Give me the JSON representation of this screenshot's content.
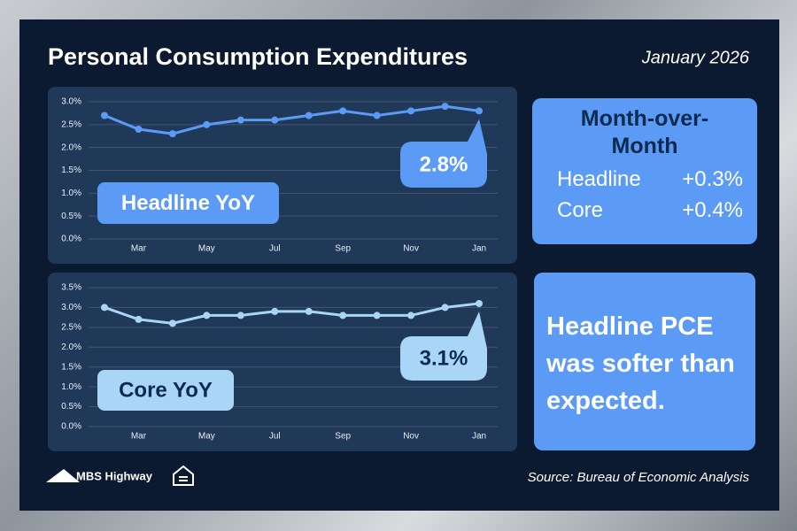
{
  "header": {
    "title": "Personal Consumption Expenditures",
    "date": "January 2026"
  },
  "chart_data": [
    {
      "type": "line",
      "title": "Headline YoY",
      "categories": [
        null,
        "Mar",
        null,
        "May",
        null,
        "Jul",
        null,
        "Sep",
        null,
        "Nov",
        null,
        "Jan"
      ],
      "values": [
        2.7,
        2.4,
        2.3,
        2.5,
        2.6,
        2.6,
        2.7,
        2.8,
        2.7,
        2.8,
        2.9,
        2.8
      ],
      "value_labels": [
        null,
        null,
        null,
        null,
        null,
        null,
        null,
        null,
        null,
        null,
        null,
        "2.8%"
      ],
      "color": "#5b9bf5",
      "ylim": [
        0,
        3
      ],
      "yticks": [
        {
          "value": 0,
          "label": "0.0%"
        },
        {
          "value": 0.5,
          "label": "0.5%"
        },
        {
          "value": 1,
          "label": "1.0%"
        },
        {
          "value": 1.5,
          "label": "1.5%"
        },
        {
          "value": 2,
          "label": "2.0%"
        },
        {
          "value": 2.5,
          "label": "2.5%"
        },
        {
          "value": 3,
          "label": "3.0%"
        }
      ],
      "grid": true
    },
    {
      "type": "line",
      "title": "Core YoY",
      "categories": [
        null,
        "Mar",
        null,
        "May",
        null,
        "Jul",
        null,
        "Sep",
        null,
        "Nov",
        null,
        "Jan"
      ],
      "values": [
        3.0,
        2.7,
        2.6,
        2.8,
        2.8,
        2.9,
        2.9,
        2.8,
        2.8,
        2.8,
        3.0,
        3.1
      ],
      "value_labels": [
        null,
        null,
        null,
        null,
        null,
        null,
        null,
        null,
        null,
        null,
        null,
        "3.1%"
      ],
      "color": "#a9d6f7",
      "ylim": [
        0,
        3.5
      ],
      "yticks": [
        {
          "value": 0,
          "label": "0.0%"
        },
        {
          "value": 0.5,
          "label": "0.5%"
        },
        {
          "value": 1,
          "label": "1.0%"
        },
        {
          "value": 1.5,
          "label": "1.5%"
        },
        {
          "value": 2,
          "label": "2.0%"
        },
        {
          "value": 2.5,
          "label": "2.5%"
        },
        {
          "value": 3,
          "label": "3.0%"
        },
        {
          "value": 3.5,
          "label": "3.5%"
        }
      ],
      "grid": true
    }
  ],
  "mom": {
    "title": "Month-over-Month",
    "rows": [
      [
        "Headline",
        "+0.3%"
      ],
      [
        "Core",
        "+0.4%"
      ]
    ]
  },
  "note": "Headline PCE was softer than expected.",
  "footer": {
    "logo": "MBS Highway",
    "source": "Source: Bureau of Economic Analysis"
  }
}
